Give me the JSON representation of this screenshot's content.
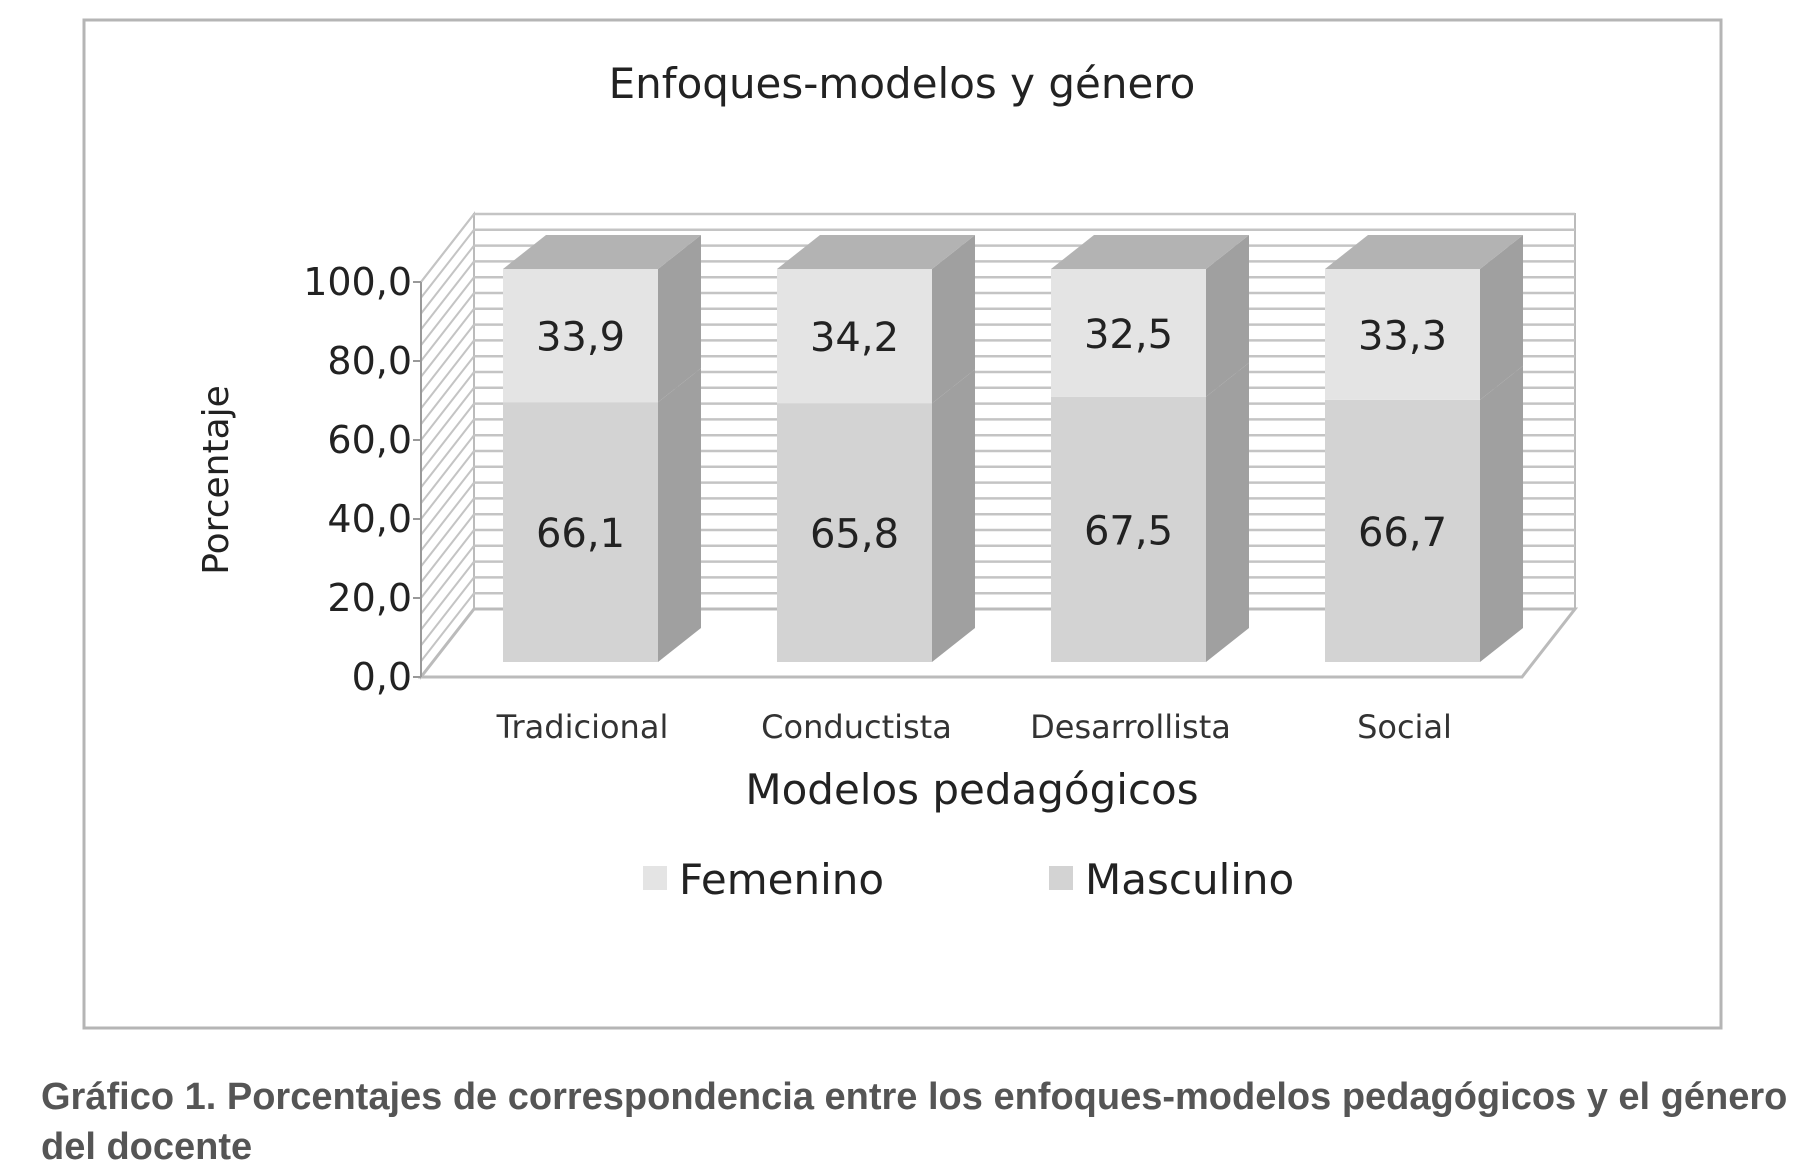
{
  "chart_data": {
    "type": "bar",
    "stacked": true,
    "three_d": true,
    "title": "Enfoques-modelos y género",
    "xlabel": "Modelos pedagógicos",
    "ylabel": "Porcentaje",
    "ylim": [
      0,
      100
    ],
    "yticks": [
      "0,0",
      "20,0",
      "40,0",
      "60,0",
      "80,0",
      "100,0"
    ],
    "categories": [
      "Tradicional",
      "Conductista",
      "Desarrollista",
      "Social"
    ],
    "series": [
      {
        "name": "Masculino",
        "values": [
          66.1,
          65.8,
          67.5,
          66.7
        ],
        "labels": [
          "66,1",
          "65,8",
          "67,5",
          "66,7"
        ],
        "color": "#d3d3d3"
      },
      {
        "name": "Femenino",
        "values": [
          33.9,
          34.2,
          32.5,
          33.3
        ],
        "labels": [
          "33,9",
          "34,2",
          "32,5",
          "33,3"
        ],
        "color": "#e4e4e4"
      }
    ],
    "legend": [
      "Femenino",
      "Masculino"
    ],
    "legend_position": "bottom",
    "grid": true
  },
  "caption": "Gráfico 1. Porcentajes de correspondencia entre los enfoques-modelos pedagógicos y el género del docente"
}
